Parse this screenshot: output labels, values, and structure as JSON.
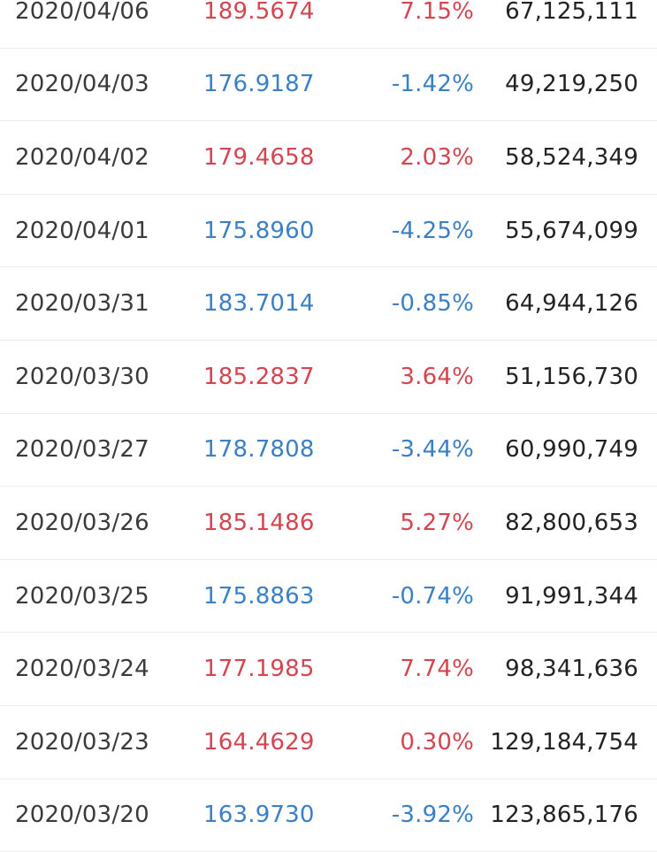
{
  "colors": {
    "up": "#d4454f",
    "down": "#3b7fc4",
    "text": "#3a3a3a",
    "divider": "#ececec"
  },
  "rows": [
    {
      "date": "2020/04/06",
      "price": "189.5674",
      "change": "7.15%",
      "volume": "67,125,111",
      "direction": "up"
    },
    {
      "date": "2020/04/03",
      "price": "176.9187",
      "change": "-1.42%",
      "volume": "49,219,250",
      "direction": "down"
    },
    {
      "date": "2020/04/02",
      "price": "179.4658",
      "change": "2.03%",
      "volume": "58,524,349",
      "direction": "up"
    },
    {
      "date": "2020/04/01",
      "price": "175.8960",
      "change": "-4.25%",
      "volume": "55,674,099",
      "direction": "down"
    },
    {
      "date": "2020/03/31",
      "price": "183.7014",
      "change": "-0.85%",
      "volume": "64,944,126",
      "direction": "down"
    },
    {
      "date": "2020/03/30",
      "price": "185.2837",
      "change": "3.64%",
      "volume": "51,156,730",
      "direction": "up"
    },
    {
      "date": "2020/03/27",
      "price": "178.7808",
      "change": "-3.44%",
      "volume": "60,990,749",
      "direction": "down"
    },
    {
      "date": "2020/03/26",
      "price": "185.1486",
      "change": "5.27%",
      "volume": "82,800,653",
      "direction": "up"
    },
    {
      "date": "2020/03/25",
      "price": "175.8863",
      "change": "-0.74%",
      "volume": "91,991,344",
      "direction": "down"
    },
    {
      "date": "2020/03/24",
      "price": "177.1985",
      "change": "7.74%",
      "volume": "98,341,636",
      "direction": "up"
    },
    {
      "date": "2020/03/23",
      "price": "164.4629",
      "change": "0.30%",
      "volume": "129,184,754",
      "direction": "up"
    },
    {
      "date": "2020/03/20",
      "price": "163.9730",
      "change": "-3.92%",
      "volume": "123,865,176",
      "direction": "down"
    }
  ]
}
